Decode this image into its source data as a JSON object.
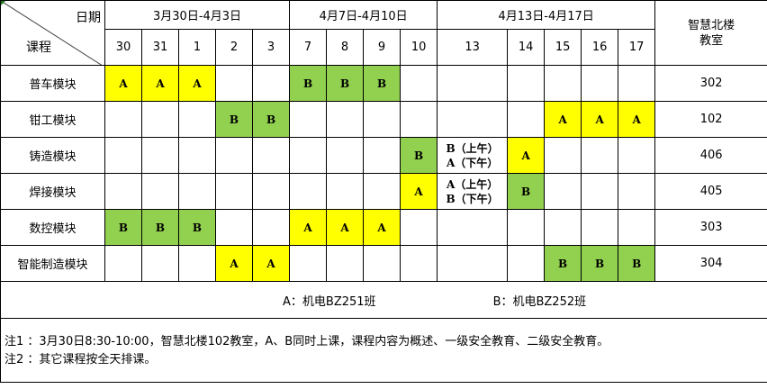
{
  "header": {
    "date_label": "日期",
    "course_label": "课程",
    "weeks": [
      "3月30日-4月3日",
      "4月7日-4月10日",
      "4月13日-4月17日"
    ],
    "room_label": "智慧北楼\n教室",
    "days": [
      "30",
      "31",
      "1",
      "2",
      "3",
      "7",
      "8",
      "9",
      "10",
      "13",
      "14",
      "15",
      "16",
      "17"
    ]
  },
  "rows": [
    {
      "course": "普车模块",
      "cells": [
        "A",
        "A",
        "A",
        "",
        "",
        "B",
        "B",
        "B",
        "",
        "",
        "",
        "",
        "",
        ""
      ],
      "room": "302"
    },
    {
      "course": "钳工模块",
      "cells": [
        "",
        "",
        "",
        "B",
        "B",
        "",
        "",
        "",
        "",
        "",
        "",
        "A",
        "A",
        "A"
      ],
      "room": "102"
    },
    {
      "course": "铸造模块",
      "cells": [
        "",
        "",
        "",
        "",
        "",
        "",
        "",
        "",
        "B",
        "B（上午）\nA（下午）",
        "A",
        "",
        "",
        ""
      ],
      "room": "406"
    },
    {
      "course": "焊接模块",
      "cells": [
        "",
        "",
        "",
        "",
        "",
        "",
        "",
        "",
        "A",
        "A（上午）\nB（下午）",
        "B",
        "",
        "",
        ""
      ],
      "room": "405"
    },
    {
      "course": "数控模块",
      "cells": [
        "B",
        "B",
        "B",
        "",
        "",
        "A",
        "A",
        "A",
        "",
        "",
        "",
        "",
        "",
        ""
      ],
      "room": "303"
    },
    {
      "course": "智能制造模块",
      "cells": [
        "",
        "",
        "",
        "A",
        "A",
        "",
        "",
        "",
        "",
        "",
        "",
        "B",
        "B",
        "B"
      ],
      "room": "304"
    }
  ],
  "legend": {
    "a": "A：机电BZ251班",
    "b": "B：机电BZ252班"
  },
  "notes": [
    "注1 ：3月30日8:30-10:00，智慧北楼102教室，A、B同时上课，课程内容为概述、一级安全教育、二级安全教育。",
    "注2 ：其它课程按全天排课。"
  ],
  "colors": {
    "A": "#ffff00",
    "B": "#92d050"
  }
}
